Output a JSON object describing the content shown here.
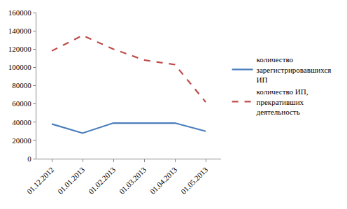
{
  "chart_data": {
    "type": "line",
    "categories": [
      "01.12.2012",
      "01.01.2013",
      "01.02.2013",
      "01.03.2013",
      "01.04.2013",
      "01.05.2013"
    ],
    "series": [
      {
        "name": "количество зарегистрировавшихся ИП",
        "color": "#4a7ebb",
        "line_style": "solid",
        "values": [
          38000,
          28000,
          39000,
          39000,
          39000,
          30000
        ]
      },
      {
        "name": "количество ИП, прекративших деятельность",
        "color": "#be4b48",
        "line_style": "dash",
        "values": [
          118000,
          135000,
          120000,
          108000,
          103000,
          62000
        ]
      }
    ],
    "ylim": [
      0,
      160000
    ],
    "yticks": [
      0,
      20000,
      40000,
      60000,
      80000,
      100000,
      120000,
      140000,
      160000
    ],
    "grid": false,
    "legend": "right"
  }
}
